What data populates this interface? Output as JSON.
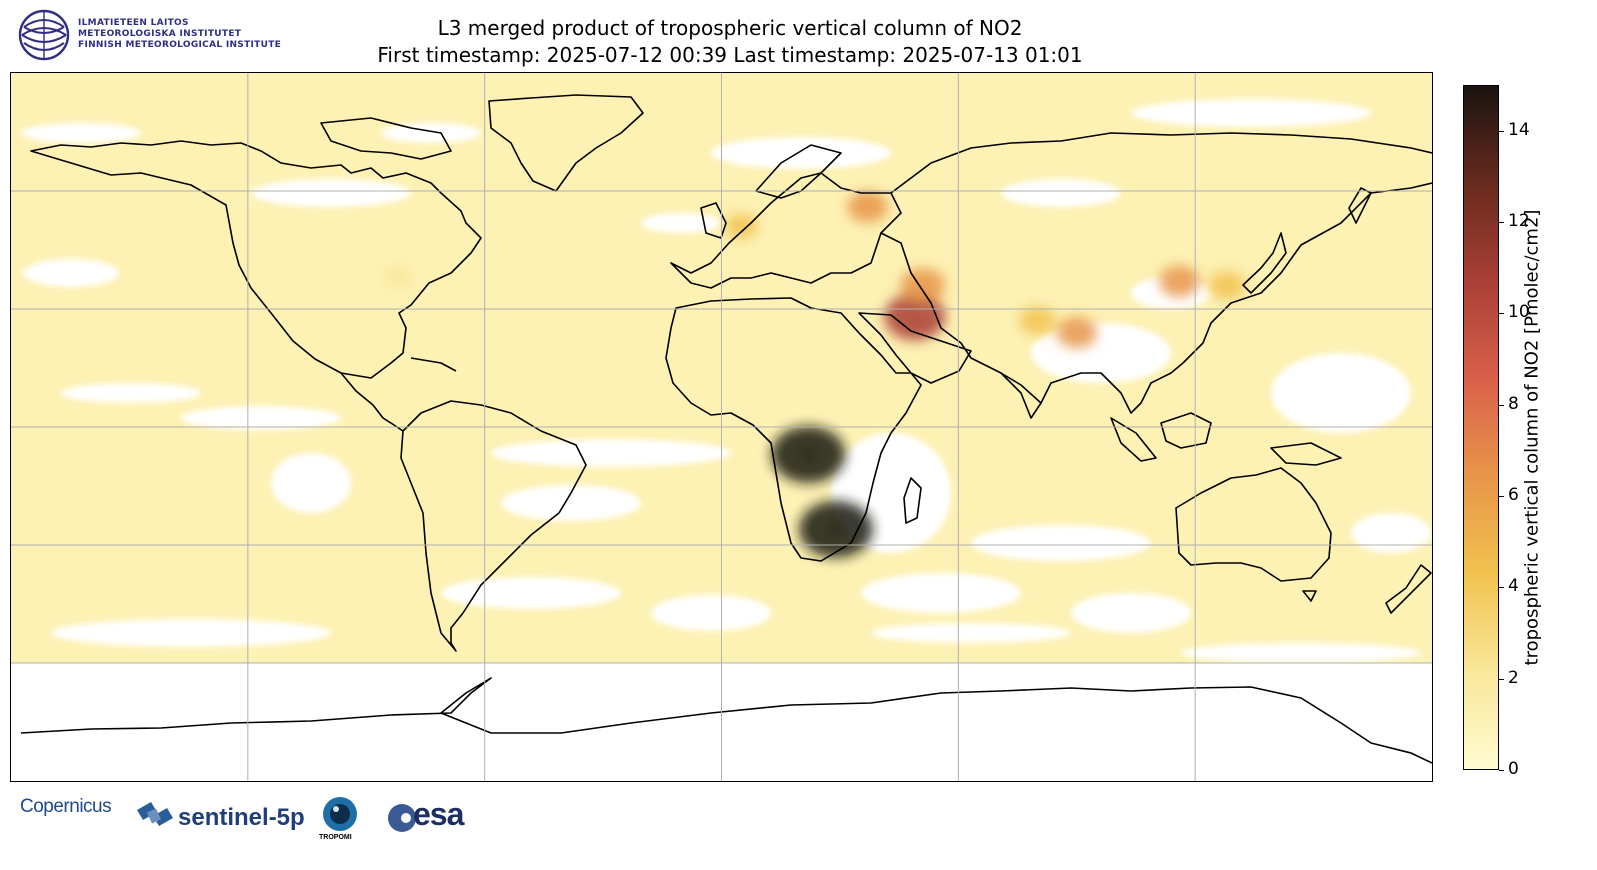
{
  "org": {
    "line1": "ILMATIETEEN LAITOS",
    "line2": "METEOROLOGISKA INSTITUTET",
    "line3": "FINNISH METEOROLOGICAL INSTITUTE",
    "color": "#2f2e84"
  },
  "title": {
    "line1": "L3 merged product of tropospheric vertical column of NO2",
    "line2": "First timestamp: 2025-07-12 00:39   Last timestamp: 2025-07-13 01:01"
  },
  "map": {
    "projection": "equirectangular",
    "extent_lon": [
      -180,
      180
    ],
    "extent_lat": [
      -90,
      90
    ],
    "gridlines": true,
    "gridline_lon": [
      -120,
      -60,
      0,
      60,
      120
    ],
    "gridline_lat": [
      -60,
      -30,
      0,
      30,
      60
    ],
    "no_data_color": "#ffffff",
    "background_field_color": "#fdf1b4",
    "hotspots": [
      {
        "name": "central-africa",
        "lon": 22,
        "lat": -7,
        "value": 14
      },
      {
        "name": "south-africa-highveld",
        "lon": 29,
        "lat": -26,
        "value": 14
      },
      {
        "name": "persian-gulf",
        "lon": 49,
        "lat": 28,
        "value": 11
      },
      {
        "name": "north-china-plain",
        "lon": 116,
        "lat": 37,
        "value": 6
      },
      {
        "name": "indo-gangetic",
        "lon": 80,
        "lat": 27,
        "value": 5
      },
      {
        "name": "moscow",
        "lon": 37,
        "lat": 56,
        "value": 6
      },
      {
        "name": "tehran",
        "lon": 51,
        "lat": 36,
        "value": 7
      },
      {
        "name": "eastern-us",
        "lon": -82,
        "lat": 38,
        "value": 3
      },
      {
        "name": "western-europe",
        "lon": 5,
        "lat": 51,
        "value": 4
      },
      {
        "name": "dhaka",
        "lon": 90,
        "lat": 24,
        "value": 6
      },
      {
        "name": "seoul-tokyo",
        "lon": 128,
        "lat": 36,
        "value": 5
      }
    ]
  },
  "colorbar": {
    "label": "tropospheric vertical column of NO2 [Pmolec/cm2]",
    "min": 0,
    "max": 15,
    "ticks": [
      "0",
      "2",
      "4",
      "6",
      "8",
      "10",
      "12",
      "14"
    ],
    "colormap": [
      "#fffbd0",
      "#f9e79a",
      "#f1c24f",
      "#e89549",
      "#d9604a",
      "#aa3f36",
      "#682a1e",
      "#1a1410"
    ]
  },
  "footer": {
    "copernicus": "Copernicus",
    "sentinel": "sentinel-5p",
    "tropomi": "TROPOMI",
    "esa": "esa"
  }
}
